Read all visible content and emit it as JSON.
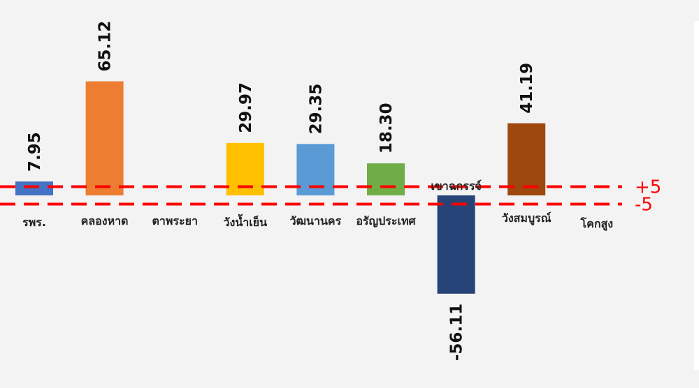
{
  "chart_data": {
    "type": "bar",
    "title": "",
    "xlabel": "",
    "ylabel": "",
    "categories": [
      "รพร.",
      "คลองหาด",
      "ตาพระยา",
      "วังน้ำเย็น",
      "วัฒนานคร",
      "อรัญประเทศ",
      "เขาฉกรรจ์",
      "วังสมบูรณ์",
      "โคกสูง"
    ],
    "values": [
      7.95,
      65.12,
      null,
      29.97,
      29.35,
      18.3,
      -56.11,
      41.19,
      null
    ],
    "value_labels": [
      "7.95",
      "65.12",
      "",
      "29.97",
      "29.35",
      "18.30",
      "-56.11",
      "41.19",
      ""
    ],
    "colors": [
      "#4472c4",
      "#ed7d31",
      "#a5a5a5",
      "#ffc000",
      "#5b9bd5",
      "#70ad47",
      "#264478",
      "#9e480e",
      "#636363"
    ],
    "reference_lines": [
      {
        "label": "+5",
        "value": 5,
        "color": "#ff0000"
      },
      {
        "label": "-5",
        "value": -5,
        "color": "#ff0000"
      }
    ],
    "grid": false,
    "legend": "none"
  }
}
